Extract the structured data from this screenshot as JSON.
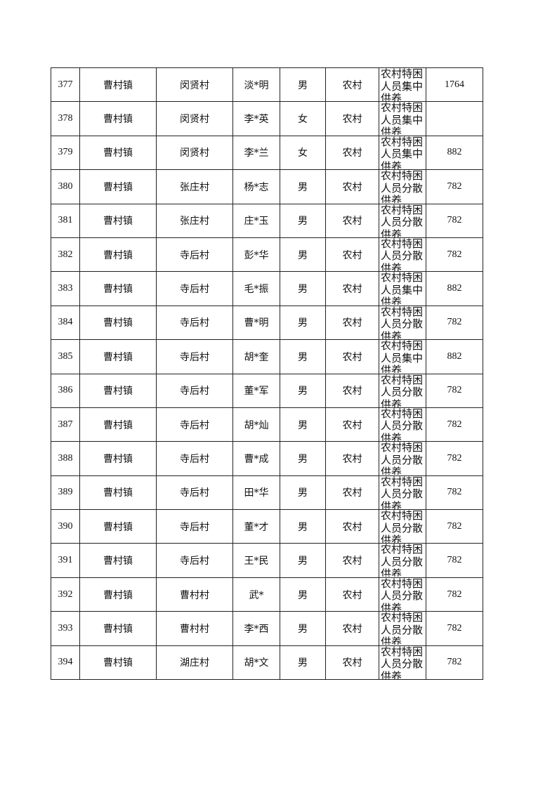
{
  "rows": [
    {
      "no": "377",
      "town": "曹村镇",
      "village": "闵贤村",
      "name": "淡*明",
      "gender": "男",
      "type": "农村",
      "category": "农村特困人员集中供养",
      "amount": "1764"
    },
    {
      "no": "378",
      "town": "曹村镇",
      "village": "闵贤村",
      "name": "李*英",
      "gender": "女",
      "type": "农村",
      "category": "农村特困人员集中供养",
      "amount": ""
    },
    {
      "no": "379",
      "town": "曹村镇",
      "village": "闵贤村",
      "name": "李*兰",
      "gender": "女",
      "type": "农村",
      "category": "农村特困人员集中供养",
      "amount": "882"
    },
    {
      "no": "380",
      "town": "曹村镇",
      "village": "张庄村",
      "name": "杨*志",
      "gender": "男",
      "type": "农村",
      "category": "农村特困人员分散供养",
      "amount": "782"
    },
    {
      "no": "381",
      "town": "曹村镇",
      "village": "张庄村",
      "name": "庄*玉",
      "gender": "男",
      "type": "农村",
      "category": "农村特困人员分散供养",
      "amount": "782"
    },
    {
      "no": "382",
      "town": "曹村镇",
      "village": "寺后村",
      "name": "彭*华",
      "gender": "男",
      "type": "农村",
      "category": "农村特困人员分散供养",
      "amount": "782"
    },
    {
      "no": "383",
      "town": "曹村镇",
      "village": "寺后村",
      "name": "毛*振",
      "gender": "男",
      "type": "农村",
      "category": "农村特困人员集中供养",
      "amount": "882"
    },
    {
      "no": "384",
      "town": "曹村镇",
      "village": "寺后村",
      "name": "曹*明",
      "gender": "男",
      "type": "农村",
      "category": "农村特困人员分散供养",
      "amount": "782"
    },
    {
      "no": "385",
      "town": "曹村镇",
      "village": "寺后村",
      "name": "胡*奎",
      "gender": "男",
      "type": "农村",
      "category": "农村特困人员集中供养",
      "amount": "882"
    },
    {
      "no": "386",
      "town": "曹村镇",
      "village": "寺后村",
      "name": "董*军",
      "gender": "男",
      "type": "农村",
      "category": "农村特困人员分散供养",
      "amount": "782"
    },
    {
      "no": "387",
      "town": "曹村镇",
      "village": "寺后村",
      "name": "胡*灿",
      "gender": "男",
      "type": "农村",
      "category": "农村特困人员分散供养",
      "amount": "782"
    },
    {
      "no": "388",
      "town": "曹村镇",
      "village": "寺后村",
      "name": "曹*成",
      "gender": "男",
      "type": "农村",
      "category": "农村特困人员分散供养",
      "amount": "782"
    },
    {
      "no": "389",
      "town": "曹村镇",
      "village": "寺后村",
      "name": "田*华",
      "gender": "男",
      "type": "农村",
      "category": "农村特困人员分散供养",
      "amount": "782"
    },
    {
      "no": "390",
      "town": "曹村镇",
      "village": "寺后村",
      "name": "董*才",
      "gender": "男",
      "type": "农村",
      "category": "农村特困人员分散供养",
      "amount": "782"
    },
    {
      "no": "391",
      "town": "曹村镇",
      "village": "寺后村",
      "name": "王*民",
      "gender": "男",
      "type": "农村",
      "category": "农村特困人员分散供养",
      "amount": "782"
    },
    {
      "no": "392",
      "town": "曹村镇",
      "village": "曹村村",
      "name": "武*",
      "gender": "男",
      "type": "农村",
      "category": "农村特困人员分散供养",
      "amount": "782"
    },
    {
      "no": "393",
      "town": "曹村镇",
      "village": "曹村村",
      "name": "李*西",
      "gender": "男",
      "type": "农村",
      "category": "农村特困人员分散供养",
      "amount": "782"
    },
    {
      "no": "394",
      "town": "曹村镇",
      "village": "湖庄村",
      "name": "胡*文",
      "gender": "男",
      "type": "农村",
      "category": "农村特困人员分散供养",
      "amount": "782"
    }
  ]
}
